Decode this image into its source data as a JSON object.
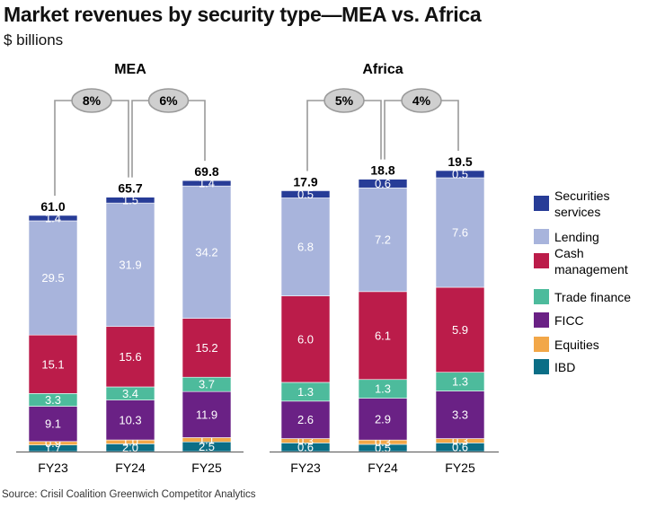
{
  "title": "Market revenues by security type—MEA vs. Africa",
  "subtitle": "$ billions",
  "source": "Source: Crisil Coalition Greenwich Competitor Analytics",
  "chart_data": {
    "type": "bar",
    "stacked": true,
    "categories": [
      "FY23",
      "FY24",
      "FY25"
    ],
    "legend": {
      "placement": "right"
    },
    "series": [
      {
        "name": "IBD",
        "color": "#0b6e86"
      },
      {
        "name": "Equities",
        "color": "#f2a748"
      },
      {
        "name": "FICC",
        "color": "#6a2185"
      },
      {
        "name": "Trade finance",
        "color": "#4dbb9c"
      },
      {
        "name": "Cash management",
        "color": "#bb1c4a"
      },
      {
        "name": "Lending",
        "color": "#a8b4dc"
      },
      {
        "name": "Securities services",
        "color": "#273c97"
      }
    ],
    "legend_order": [
      "Securities services",
      "Lending",
      "Cash management",
      "Trade finance",
      "FICC",
      "Equities",
      "IBD"
    ],
    "panels": [
      {
        "title": "MEA",
        "totals": [
          "61.0",
          "65.7",
          "69.8"
        ],
        "growth": [
          "8%",
          "6%"
        ],
        "values": {
          "IBD": [
            1.7,
            2.0,
            2.5
          ],
          "Equities": [
            0.9,
            1.0,
            1.1
          ],
          "FICC": [
            9.1,
            10.3,
            11.9
          ],
          "Trade finance": [
            3.3,
            3.4,
            3.7
          ],
          "Cash management": [
            15.1,
            15.6,
            15.2
          ],
          "Lending": [
            29.5,
            31.9,
            34.2
          ],
          "Securities services": [
            1.4,
            1.5,
            1.4
          ]
        }
      },
      {
        "title": "Africa",
        "totals": [
          "17.9",
          "18.8",
          "19.5"
        ],
        "growth": [
          "5%",
          "4%"
        ],
        "values": {
          "IBD": [
            0.6,
            0.5,
            0.6
          ],
          "Equities": [
            0.3,
            0.3,
            0.3
          ],
          "FICC": [
            2.6,
            2.9,
            3.3
          ],
          "Trade finance": [
            1.3,
            1.3,
            1.3
          ],
          "Cash management": [
            6.0,
            6.1,
            5.9
          ],
          "Lending": [
            6.8,
            7.2,
            7.6
          ],
          "Securities services": [
            0.5,
            0.6,
            0.5
          ]
        }
      }
    ]
  }
}
